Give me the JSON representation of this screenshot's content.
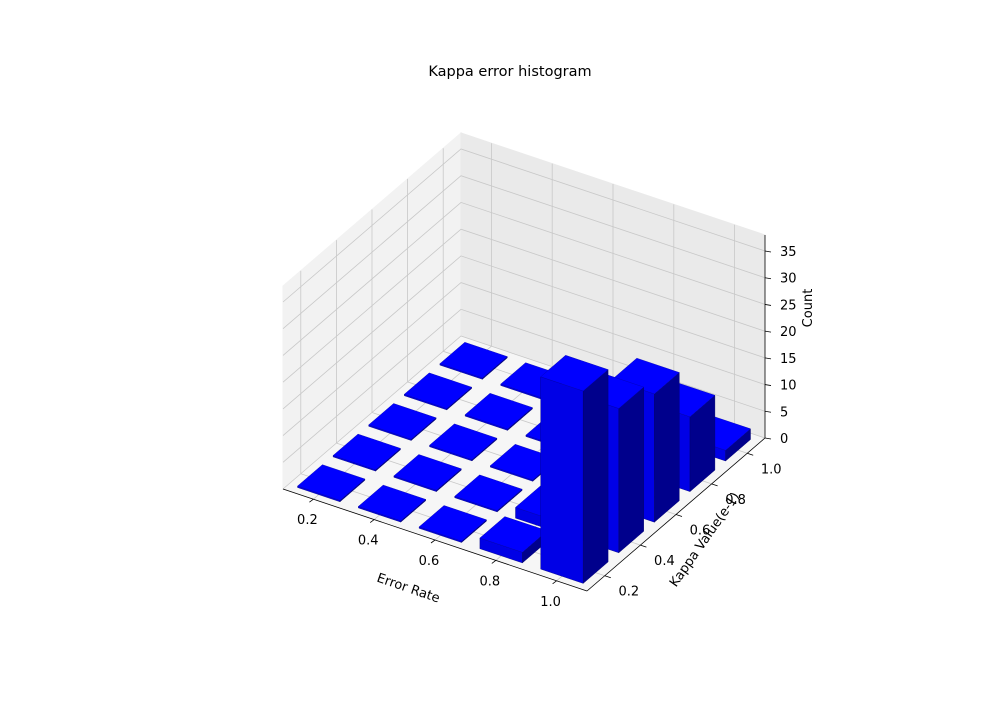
{
  "chart_data": {
    "type": "bar3d",
    "title": "Kappa error histogram",
    "xlabel": "Error Rate",
    "ylabel": "Kappa Value(e-1)",
    "zlabel": "Count",
    "x_ticks": [
      "0.2",
      "0.4",
      "0.6",
      "0.8",
      "1.0"
    ],
    "y_ticks": [
      "0.2",
      "0.4",
      "0.6",
      "0.8",
      "1.0"
    ],
    "z_ticks": [
      "0",
      "5",
      "10",
      "15",
      "20",
      "25",
      "30",
      "35"
    ],
    "xlim": [
      0.1,
      1.1
    ],
    "ylim": [
      0.1,
      1.1
    ],
    "zlim": [
      0,
      38
    ],
    "grid": true,
    "bar_color": "#0000ff",
    "x_bins": [
      0.2,
      0.4,
      0.6,
      0.8,
      1.0
    ],
    "y_bins": [
      0.2,
      0.4,
      0.6,
      0.8,
      1.0
    ],
    "counts": [
      [
        0,
        0,
        0,
        0,
        0
      ],
      [
        0,
        0,
        0,
        0,
        0
      ],
      [
        0,
        0,
        0,
        0,
        0
      ],
      [
        2,
        2,
        0,
        0,
        0
      ],
      [
        36,
        27,
        24,
        14,
        2
      ]
    ]
  }
}
